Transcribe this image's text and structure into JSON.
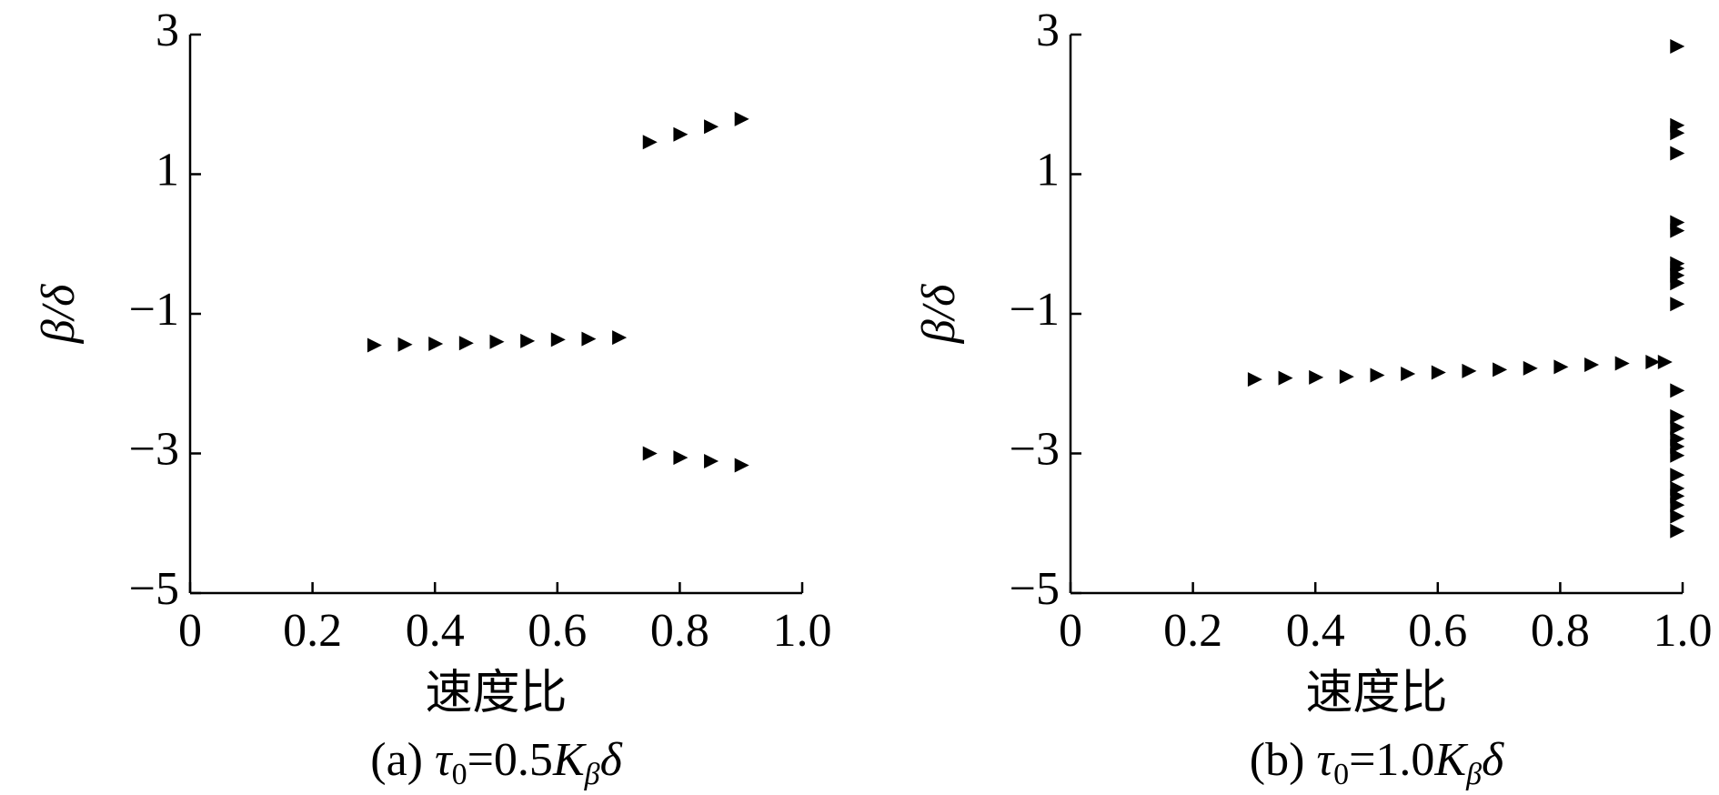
{
  "chart_data": [
    {
      "type": "scatter",
      "ylabel": "β/δ",
      "xlabel": "速度比",
      "caption": [
        {
          "text": "(a) "
        },
        {
          "text": "τ",
          "italic": true
        },
        {
          "text": "0",
          "sub": true
        },
        {
          "text": "=0.5"
        },
        {
          "text": "K",
          "italic": true
        },
        {
          "text": "β",
          "sub": true,
          "italic": true
        },
        {
          "text": "δ",
          "italic": true
        }
      ],
      "color": "#000000",
      "xlim": [
        0,
        1
      ],
      "ylim": [
        -5,
        3
      ],
      "xticks": [
        0,
        0.2,
        0.4,
        0.6,
        0.8,
        {
          "value": 1,
          "label": "1.0"
        }
      ],
      "yticks": [
        {
          "value": -5,
          "label": "−5"
        },
        {
          "value": -3,
          "label": "−3"
        },
        {
          "value": -1,
          "label": "−1"
        },
        1,
        3
      ],
      "x": [
        0.3,
        0.35,
        0.4,
        0.45,
        0.5,
        0.55,
        0.6,
        0.65,
        0.7,
        0.75,
        0.8,
        0.85,
        0.9,
        0.75,
        0.8,
        0.85,
        0.9
      ],
      "values": [
        -1.45,
        -1.44,
        -1.43,
        -1.42,
        -1.4,
        -1.39,
        -1.37,
        -1.36,
        -1.34,
        1.46,
        1.57,
        1.68,
        1.79,
        -3.0,
        -3.06,
        -3.11,
        -3.17
      ]
    },
    {
      "type": "scatter",
      "ylabel": "β/δ",
      "xlabel": "速度比",
      "caption": [
        {
          "text": "(b) "
        },
        {
          "text": "τ",
          "italic": true
        },
        {
          "text": "0",
          "sub": true
        },
        {
          "text": "=1.0"
        },
        {
          "text": "K",
          "italic": true
        },
        {
          "text": "β",
          "sub": true,
          "italic": true
        },
        {
          "text": "δ",
          "italic": true
        }
      ],
      "color": "#000000",
      "xlim": [
        0,
        1
      ],
      "ylim": [
        -5,
        3
      ],
      "xticks": [
        0,
        0.2,
        0.4,
        0.6,
        0.8,
        {
          "value": 1,
          "label": "1.0"
        }
      ],
      "yticks": [
        {
          "value": -5,
          "label": "−5"
        },
        {
          "value": -3,
          "label": "−3"
        },
        {
          "value": -1,
          "label": "−1"
        },
        1,
        3
      ],
      "x": [
        0.3,
        0.35,
        0.4,
        0.45,
        0.5,
        0.55,
        0.6,
        0.65,
        0.7,
        0.75,
        0.8,
        0.85,
        0.9,
        0.95,
        0.97,
        0.99,
        0.99,
        0.99,
        0.99,
        0.99,
        0.99,
        0.99,
        0.99,
        0.99,
        0.99,
        0.99,
        0.99,
        0.99,
        0.99,
        0.99,
        0.99,
        0.99,
        0.99,
        0.99,
        0.99,
        0.99,
        0.99,
        0.99
      ],
      "values": [
        -1.94,
        -1.92,
        -1.91,
        -1.9,
        -1.88,
        -1.86,
        -1.84,
        -1.82,
        -1.8,
        -1.78,
        -1.76,
        -1.73,
        -1.71,
        -1.69,
        -1.69,
        2.83,
        1.7,
        1.59,
        1.3,
        0.31,
        0.19,
        -0.28,
        -0.35,
        -0.45,
        -0.56,
        -0.86,
        -2.1,
        -2.47,
        -2.63,
        -2.79,
        -2.9,
        -3.03,
        -3.31,
        -3.5,
        -3.61,
        -3.74,
        -3.9,
        -4.11
      ]
    }
  ]
}
